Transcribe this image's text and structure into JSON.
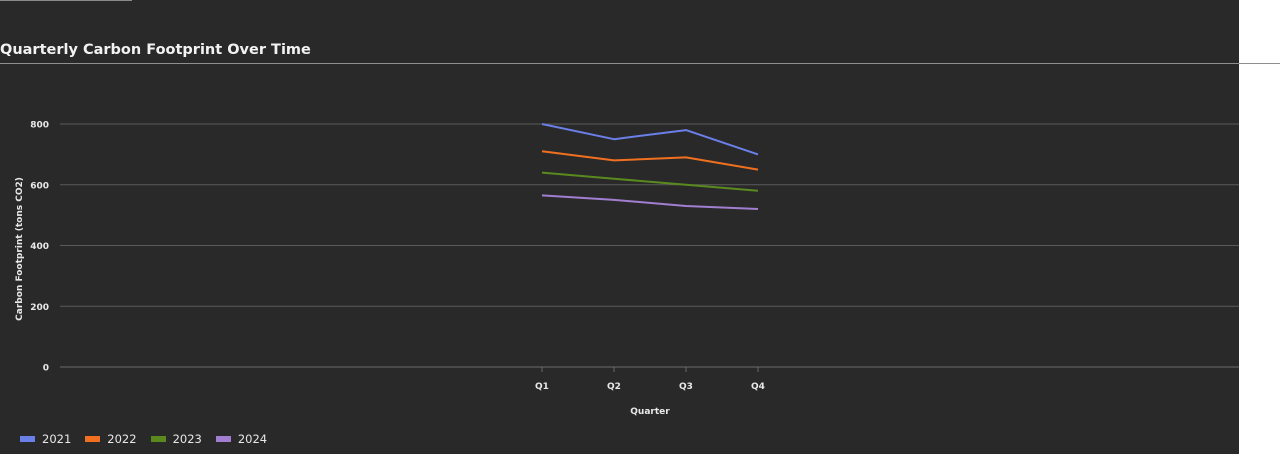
{
  "chart_data": {
    "type": "line",
    "title": "Quarterly Carbon Footprint Over Time",
    "xlabel": "Quarter",
    "ylabel": "Carbon Footprint (tons CO2)",
    "categories": [
      "Q1",
      "Q2",
      "Q3",
      "Q4"
    ],
    "ylim": [
      0,
      900
    ],
    "yticks": [
      0,
      200,
      400,
      600,
      800
    ],
    "grid": true,
    "legend_position": "bottom-left",
    "series": [
      {
        "name": "2021",
        "color": "#6b7fe8",
        "values": [
          800,
          750,
          780,
          700
        ]
      },
      {
        "name": "2022",
        "color": "#f07020",
        "values": [
          710,
          680,
          690,
          650
        ]
      },
      {
        "name": "2023",
        "color": "#5a8a1e",
        "values": [
          640,
          620,
          600,
          580
        ]
      },
      {
        "name": "2024",
        "color": "#a27ed0",
        "values": [
          565,
          550,
          530,
          520
        ]
      }
    ]
  }
}
